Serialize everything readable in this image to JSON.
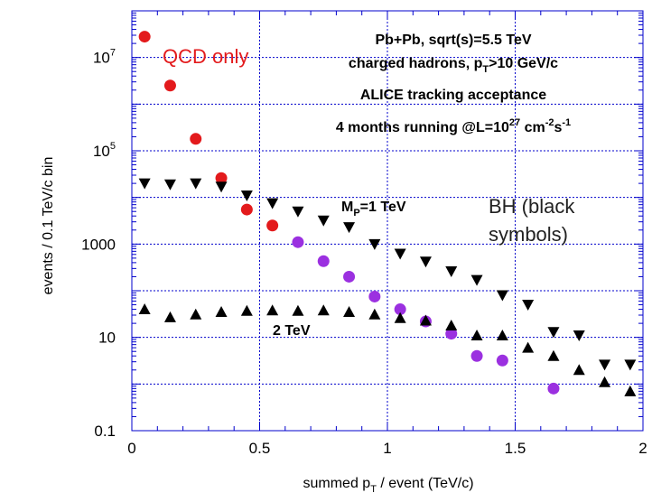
{
  "chart_data": {
    "type": "scatter",
    "xlabel_main": "summed p",
    "xlabel_sub": "T",
    "xlabel_tail": " / event (TeV/c)",
    "ylabel": "events / 0.1 TeV/c bin",
    "xlim": [
      0,
      2
    ],
    "ylim": [
      0.1,
      100000000
    ],
    "yscale": "log",
    "grid": true,
    "x_ticks": [
      {
        "value": 0,
        "label": "0"
      },
      {
        "value": 0.5,
        "label": "0.5"
      },
      {
        "value": 1,
        "label": "1"
      },
      {
        "value": 1.5,
        "label": "1.5"
      },
      {
        "value": 2,
        "label": "2"
      }
    ],
    "y_ticks": [
      {
        "value": 0.1,
        "label": "0.1"
      },
      {
        "value": 10,
        "label": "10"
      },
      {
        "value": 1000,
        "label": "1000"
      },
      {
        "value": 100000,
        "mantissa": "10",
        "exp": "5"
      },
      {
        "value": 10000000,
        "mantissa": "10",
        "exp": "7"
      }
    ],
    "series": [
      {
        "name": "QCD only",
        "marker": "circle",
        "color": "#e31a1c",
        "x": [
          0.05,
          0.15,
          0.25,
          0.35,
          0.45,
          0.55
        ],
        "y": [
          28000000,
          2500000,
          180000,
          26000,
          5500,
          2500
        ]
      },
      {
        "marker": "circle",
        "color": "#9b30e0",
        "x": [
          0.65,
          0.75,
          0.85,
          0.95,
          1.05,
          1.15,
          1.25,
          1.35,
          1.45,
          1.65
        ],
        "y": [
          1100,
          430,
          200,
          75,
          40,
          22,
          12,
          4,
          3.2,
          0.8
        ]
      },
      {
        "marker": "triangle-down",
        "color": "#000000",
        "x": [
          0.05,
          0.15,
          0.25,
          0.35,
          0.45,
          0.55,
          0.65,
          0.75,
          0.85,
          0.95,
          1.05,
          1.15,
          1.25,
          1.35,
          1.45,
          1.55,
          1.65,
          1.75,
          1.85,
          1.95
        ],
        "y": [
          20000,
          19000,
          20000,
          17000,
          11000,
          7500,
          5000,
          3200,
          2300,
          1000,
          620,
          420,
          260,
          170,
          80,
          50,
          13,
          11,
          2.6,
          2.6
        ]
      },
      {
        "marker": "triangle-up",
        "color": "#000000",
        "x": [
          0.05,
          0.15,
          0.25,
          0.35,
          0.45,
          0.55,
          0.65,
          0.75,
          0.85,
          0.95,
          1.05,
          1.15,
          1.25,
          1.35,
          1.45,
          1.55,
          1.65,
          1.75,
          1.85,
          1.95
        ],
        "y": [
          40,
          27,
          31,
          35,
          37,
          38,
          37,
          38,
          35,
          31,
          26,
          23,
          18,
          11,
          11,
          6,
          4,
          2,
          1.1,
          0.7
        ]
      }
    ],
    "annotations": {
      "qcd_label": "QCD only",
      "qcd_color": "#e31a1c",
      "info_line1": "Pb+Pb, sqrt(s)=5.5 TeV",
      "info_line2_main": "charged hadrons, p",
      "info_line2_sub": "T",
      "info_line2_tail": ">10 GeV/c",
      "info_line3": "ALICE tracking acceptance",
      "info_line4_main": "4 months running @L=10",
      "info_line4_sup1": "27",
      "info_line4_mid": " cm",
      "info_line4_sup2": "-2",
      "info_line4_s": "s",
      "info_line4_sup3": "-1",
      "mp_main": "M",
      "mp_sub": "P",
      "mp_tail": "=1 TeV",
      "two_tev": "2 TeV",
      "bh_line1": "BH (black",
      "bh_line2": "symbols)",
      "bh_color": "#222222"
    },
    "colors": {
      "frame": "#0000cc",
      "grid": "#0000cc"
    }
  }
}
